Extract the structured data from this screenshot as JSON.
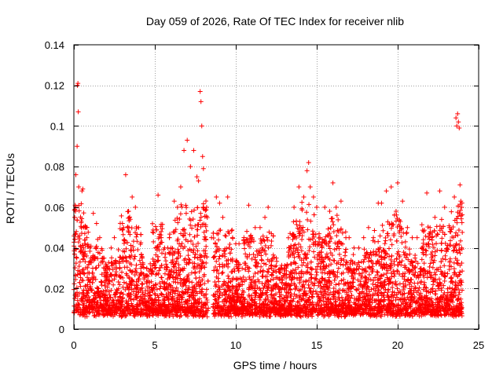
{
  "chart_data": {
    "type": "scatter",
    "title": "Day 059 of 2026, Rate Of TEC Index for receiver nlib",
    "xlabel": "GPS time / hours",
    "ylabel": "ROTI / TECUs",
    "xlim": [
      0,
      25
    ],
    "ylim": [
      0,
      0.14
    ],
    "x_ticks": [
      0,
      5,
      10,
      15,
      20,
      25
    ],
    "x_tick_labels": [
      "0",
      "5",
      "10",
      "15",
      "20",
      "25"
    ],
    "y_ticks": [
      0,
      0.02,
      0.04,
      0.06,
      0.08,
      0.1,
      0.12,
      0.14
    ],
    "y_tick_labels": [
      "0",
      "0.02",
      "0.04",
      "0.06",
      "0.08",
      "0.1",
      "0.12",
      "0.14"
    ],
    "grid": true,
    "marker": "+",
    "marker_color": "#ff0000",
    "series": [
      {
        "name": "ROTI",
        "points": [
          [
            0.05,
            0.055
          ],
          [
            0.08,
            0.061
          ],
          [
            0.1,
            0.058
          ],
          [
            0.12,
            0.076
          ],
          [
            0.15,
            0.048
          ],
          [
            0.18,
            0.035
          ],
          [
            0.2,
            0.09
          ],
          [
            0.22,
            0.12
          ],
          [
            0.25,
            0.121
          ],
          [
            0.27,
            0.107
          ],
          [
            0.3,
            0.07
          ],
          [
            0.35,
            0.046
          ],
          [
            0.4,
            0.041
          ],
          [
            0.5,
            0.068
          ],
          [
            0.55,
            0.069
          ],
          [
            0.7,
            0.05
          ],
          [
            0.8,
            0.045
          ],
          [
            1.0,
            0.04
          ],
          [
            1.2,
            0.057
          ],
          [
            1.4,
            0.052
          ],
          [
            1.6,
            0.045
          ],
          [
            1.8,
            0.035
          ],
          [
            2.0,
            0.03
          ],
          [
            2.3,
            0.04
          ],
          [
            2.5,
            0.045
          ],
          [
            2.8,
            0.033
          ],
          [
            3.0,
            0.052
          ],
          [
            3.2,
            0.076
          ],
          [
            3.4,
            0.05
          ],
          [
            3.6,
            0.065
          ],
          [
            3.8,
            0.06
          ],
          [
            4.0,
            0.05
          ],
          [
            4.2,
            0.035
          ],
          [
            4.5,
            0.03
          ],
          [
            4.8,
            0.027
          ],
          [
            5.0,
            0.03
          ],
          [
            5.2,
            0.066
          ],
          [
            5.4,
            0.045
          ],
          [
            5.6,
            0.04
          ],
          [
            5.8,
            0.04
          ],
          [
            6.0,
            0.04
          ],
          [
            6.2,
            0.063
          ],
          [
            6.4,
            0.06
          ],
          [
            6.6,
            0.07
          ],
          [
            6.8,
            0.088
          ],
          [
            7.0,
            0.093
          ],
          [
            7.2,
            0.08
          ],
          [
            7.4,
            0.088
          ],
          [
            7.6,
            0.075
          ],
          [
            7.7,
            0.073
          ],
          [
            7.8,
            0.117
          ],
          [
            7.85,
            0.112
          ],
          [
            7.9,
            0.1
          ],
          [
            7.95,
            0.085
          ],
          [
            8.0,
            0.079
          ],
          [
            8.2,
            0.06
          ],
          [
            8.5,
            0.045
          ],
          [
            8.8,
            0.065
          ],
          [
            9.0,
            0.062
          ],
          [
            9.2,
            0.055
          ],
          [
            9.5,
            0.065
          ],
          [
            9.8,
            0.045
          ],
          [
            10.0,
            0.042
          ],
          [
            10.2,
            0.042
          ],
          [
            10.5,
            0.044
          ],
          [
            10.8,
            0.061
          ],
          [
            11.0,
            0.045
          ],
          [
            11.2,
            0.05
          ],
          [
            11.5,
            0.05
          ],
          [
            11.8,
            0.055
          ],
          [
            12.0,
            0.06
          ],
          [
            12.2,
            0.047
          ],
          [
            12.5,
            0.035
          ],
          [
            12.8,
            0.03
          ],
          [
            13.0,
            0.03
          ],
          [
            13.3,
            0.04
          ],
          [
            13.6,
            0.06
          ],
          [
            13.9,
            0.07
          ],
          [
            14.2,
            0.065
          ],
          [
            14.4,
            0.078
          ],
          [
            14.5,
            0.082
          ],
          [
            14.6,
            0.07
          ],
          [
            14.8,
            0.065
          ],
          [
            15.0,
            0.06
          ],
          [
            15.2,
            0.045
          ],
          [
            15.5,
            0.06
          ],
          [
            15.8,
            0.058
          ],
          [
            16.0,
            0.072
          ],
          [
            16.2,
            0.06
          ],
          [
            16.5,
            0.063
          ],
          [
            16.8,
            0.045
          ],
          [
            17.0,
            0.045
          ],
          [
            17.3,
            0.04
          ],
          [
            17.6,
            0.04
          ],
          [
            17.9,
            0.045
          ],
          [
            18.2,
            0.05
          ],
          [
            18.5,
            0.045
          ],
          [
            18.8,
            0.062
          ],
          [
            19.0,
            0.062
          ],
          [
            19.3,
            0.068
          ],
          [
            19.6,
            0.07
          ],
          [
            19.9,
            0.058
          ],
          [
            20.0,
            0.072
          ],
          [
            20.3,
            0.063
          ],
          [
            20.6,
            0.05
          ],
          [
            20.9,
            0.045
          ],
          [
            21.2,
            0.045
          ],
          [
            21.5,
            0.04
          ],
          [
            21.8,
            0.067
          ],
          [
            22.0,
            0.05
          ],
          [
            22.3,
            0.055
          ],
          [
            22.6,
            0.068
          ],
          [
            22.9,
            0.06
          ],
          [
            23.2,
            0.05
          ],
          [
            23.5,
            0.065
          ],
          [
            23.6,
            0.104
          ],
          [
            23.65,
            0.1
          ],
          [
            23.7,
            0.106
          ],
          [
            23.75,
            0.102
          ],
          [
            23.8,
            0.099
          ],
          [
            23.85,
            0.071
          ],
          [
            23.9,
            0.063
          ],
          [
            23.95,
            0.04
          ]
        ]
      }
    ]
  }
}
